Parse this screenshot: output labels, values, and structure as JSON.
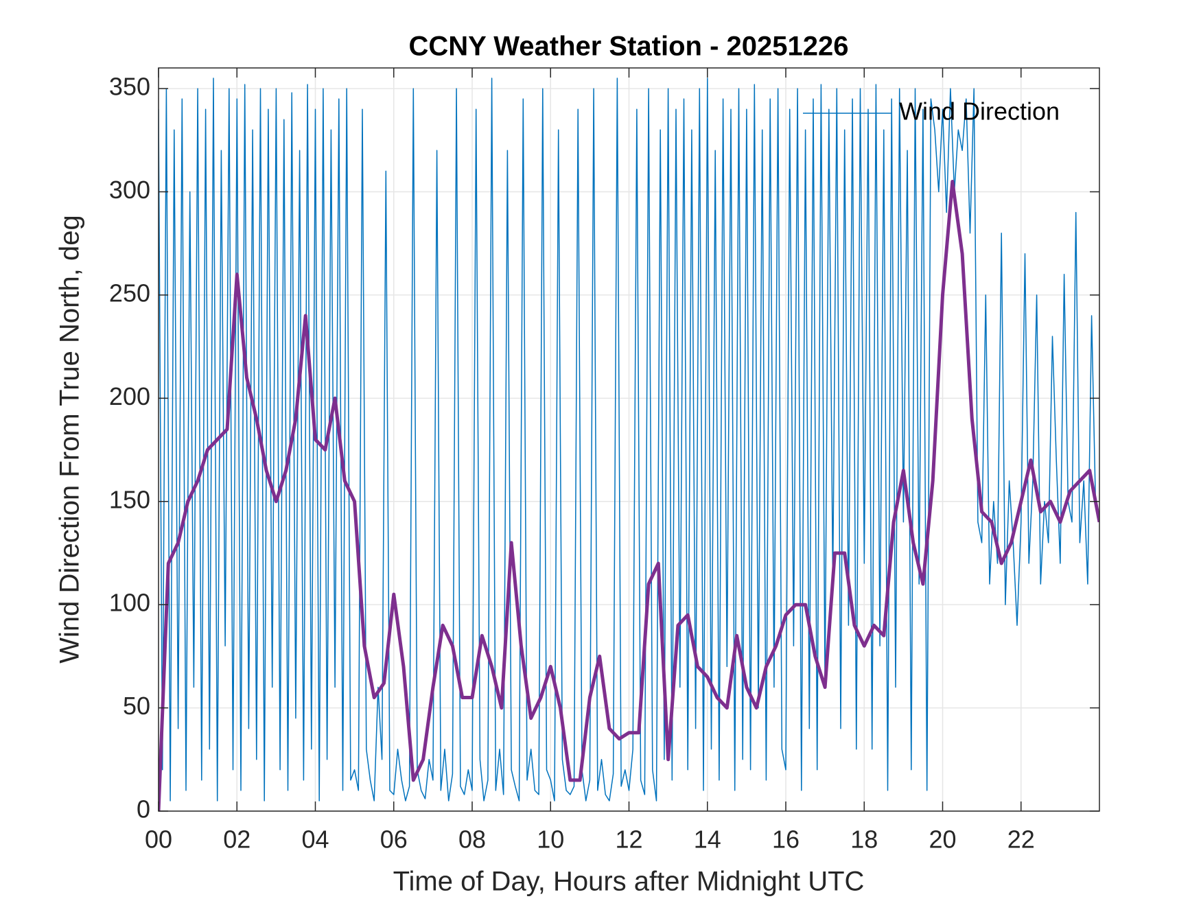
{
  "chart_data": {
    "type": "line",
    "title": "CCNY Weather Station - 20251226",
    "xlabel": "Time of Day, Hours after Midnight UTC",
    "ylabel": "Wind Direction From True North, deg",
    "xlim": [
      0,
      24
    ],
    "xticks": [
      {
        "value": 0,
        "label": "00"
      },
      {
        "value": 2,
        "label": "02"
      },
      {
        "value": 4,
        "label": "04"
      },
      {
        "value": 6,
        "label": "06"
      },
      {
        "value": 8,
        "label": "08"
      },
      {
        "value": 10,
        "label": "10"
      },
      {
        "value": 12,
        "label": "12"
      },
      {
        "value": 14,
        "label": "14"
      },
      {
        "value": 16,
        "label": "16"
      },
      {
        "value": 18,
        "label": "18"
      },
      {
        "value": 20,
        "label": "20"
      },
      {
        "value": 22,
        "label": "22"
      }
    ],
    "ylim": [
      0,
      360
    ],
    "yticks": [
      0,
      50,
      100,
      150,
      200,
      250,
      300,
      350
    ],
    "grid": true,
    "legend": "northeast",
    "series": [
      {
        "name": "Wind Direction",
        "color": "#0072bd",
        "width": 1.5,
        "x": [
          0,
          0.1,
          0.2,
          0.3,
          0.4,
          0.5,
          0.6,
          0.7,
          0.8,
          0.9,
          1,
          1.1,
          1.2,
          1.3,
          1.4,
          1.5,
          1.6,
          1.7,
          1.8,
          1.9,
          2,
          2.1,
          2.2,
          2.3,
          2.4,
          2.5,
          2.6,
          2.7,
          2.8,
          2.9,
          3,
          3.1,
          3.2,
          3.3,
          3.4,
          3.5,
          3.6,
          3.7,
          3.8,
          3.9,
          4,
          4.1,
          4.2,
          4.3,
          4.4,
          4.5,
          4.6,
          4.7,
          4.8,
          4.9,
          5,
          5.1,
          5.2,
          5.3,
          5.4,
          5.5,
          5.6,
          5.7,
          5.8,
          5.9,
          6,
          6.1,
          6.2,
          6.3,
          6.4,
          6.5,
          6.6,
          6.7,
          6.8,
          6.9,
          7,
          7.1,
          7.2,
          7.3,
          7.4,
          7.5,
          7.6,
          7.7,
          7.8,
          7.9,
          8,
          8.1,
          8.2,
          8.3,
          8.4,
          8.5,
          8.6,
          8.7,
          8.8,
          8.9,
          9,
          9.1,
          9.2,
          9.3,
          9.4,
          9.5,
          9.6,
          9.7,
          9.8,
          9.9,
          10,
          10.1,
          10.2,
          10.3,
          10.4,
          10.5,
          10.6,
          10.7,
          10.8,
          10.9,
          11,
          11.1,
          11.2,
          11.3,
          11.4,
          11.5,
          11.6,
          11.7,
          11.8,
          11.9,
          12,
          12.1,
          12.2,
          12.3,
          12.4,
          12.5,
          12.6,
          12.7,
          12.8,
          12.9,
          13,
          13.1,
          13.2,
          13.3,
          13.4,
          13.5,
          13.6,
          13.7,
          13.8,
          13.9,
          14,
          14.1,
          14.2,
          14.3,
          14.4,
          14.5,
          14.6,
          14.7,
          14.8,
          14.9,
          15,
          15.1,
          15.2,
          15.3,
          15.4,
          15.5,
          15.6,
          15.7,
          15.8,
          15.9,
          16,
          16.1,
          16.2,
          16.3,
          16.4,
          16.5,
          16.6,
          16.7,
          16.8,
          16.9,
          17,
          17.1,
          17.2,
          17.3,
          17.4,
          17.5,
          17.6,
          17.7,
          17.8,
          17.9,
          18,
          18.1,
          18.2,
          18.3,
          18.4,
          18.5,
          18.6,
          18.7,
          18.8,
          18.9,
          19,
          19.1,
          19.2,
          19.3,
          19.4,
          19.5,
          19.6,
          19.7,
          19.8,
          19.9,
          20,
          20.1,
          20.2,
          20.3,
          20.4,
          20.5,
          20.6,
          20.7,
          20.8,
          20.9,
          21,
          21.1,
          21.2,
          21.3,
          21.4,
          21.5,
          21.6,
          21.7,
          21.8,
          21.9,
          22,
          22.1,
          22.2,
          22.3,
          22.4,
          22.5,
          22.6,
          22.7,
          22.8,
          22.9,
          23,
          23.1,
          23.2,
          23.3,
          23.4,
          23.5,
          23.6,
          23.7,
          23.8,
          23.9,
          24
        ],
        "values": [
          340,
          20,
          350,
          5,
          330,
          40,
          345,
          10,
          300,
          60,
          350,
          15,
          340,
          30,
          355,
          5,
          320,
          80,
          350,
          20,
          345,
          10,
          352,
          40,
          330,
          25,
          350,
          5,
          340,
          60,
          350,
          20,
          335,
          10,
          348,
          45,
          320,
          15,
          352,
          30,
          340,
          5,
          350,
          25,
          330,
          60,
          345,
          10,
          350,
          15,
          20,
          10,
          340,
          30,
          15,
          5,
          60,
          25,
          310,
          10,
          8,
          30,
          15,
          5,
          12,
          350,
          20,
          10,
          6,
          25,
          15,
          320,
          10,
          30,
          5,
          18,
          350,
          12,
          8,
          20,
          10,
          340,
          25,
          5,
          15,
          355,
          10,
          30,
          8,
          320,
          20,
          12,
          5,
          345,
          15,
          30,
          10,
          8,
          350,
          20,
          15,
          5,
          330,
          25,
          10,
          8,
          12,
          340,
          20,
          5,
          15,
          350,
          10,
          25,
          8,
          5,
          18,
          355,
          12,
          20,
          10,
          30,
          340,
          15,
          8,
          350,
          20,
          5,
          330,
          25,
          350,
          15,
          340,
          60,
          345,
          20,
          330,
          40,
          350,
          10,
          355,
          30,
          320,
          15,
          345,
          70,
          340,
          10,
          350,
          25,
          340,
          20,
          352,
          50,
          330,
          15,
          345,
          60,
          350,
          30,
          20,
          340,
          80,
          350,
          10,
          330,
          40,
          345,
          20,
          352,
          60,
          340,
          110,
          350,
          40,
          330,
          90,
          345,
          30,
          350,
          120,
          340,
          30,
          352,
          80,
          330,
          10,
          345,
          60,
          350,
          140,
          320,
          20,
          350,
          110,
          340,
          10,
          345,
          330,
          300,
          340,
          290,
          350,
          300,
          330,
          320,
          345,
          280,
          350,
          140,
          130,
          250,
          110,
          150,
          120,
          280,
          100,
          160,
          130,
          90,
          140,
          270,
          120,
          160,
          250,
          110,
          150,
          130,
          230,
          170,
          120,
          260,
          150,
          140,
          290,
          130,
          160,
          110,
          240,
          150,
          140
        ]
      },
      {
        "color": "#7e2f8e",
        "width": 5,
        "x": [
          0,
          0.25,
          0.5,
          0.75,
          1,
          1.25,
          1.5,
          1.75,
          2,
          2.25,
          2.5,
          2.75,
          3,
          3.25,
          3.5,
          3.75,
          4,
          4.25,
          4.5,
          4.75,
          5,
          5.25,
          5.5,
          5.75,
          6,
          6.25,
          6.5,
          6.75,
          7,
          7.25,
          7.5,
          7.75,
          8,
          8.25,
          8.5,
          8.75,
          9,
          9.25,
          9.5,
          9.75,
          10,
          10.25,
          10.5,
          10.75,
          11,
          11.25,
          11.5,
          11.75,
          12,
          12.25,
          12.5,
          12.75,
          13,
          13.25,
          13.5,
          13.75,
          14,
          14.25,
          14.5,
          14.75,
          15,
          15.25,
          15.5,
          15.75,
          16,
          16.25,
          16.5,
          16.75,
          17,
          17.25,
          17.5,
          17.75,
          18,
          18.25,
          18.5,
          18.75,
          19,
          19.25,
          19.5,
          19.75,
          20,
          20.25,
          20.5,
          20.75,
          21,
          21.25,
          21.5,
          21.75,
          22,
          22.25,
          22.5,
          22.75,
          23,
          23.25,
          23.5,
          23.75,
          24
        ],
        "values": [
          0,
          120,
          130,
          150,
          160,
          175,
          180,
          185,
          260,
          210,
          190,
          165,
          150,
          165,
          190,
          240,
          180,
          175,
          200,
          160,
          150,
          80,
          55,
          62,
          105,
          70,
          15,
          25,
          60,
          90,
          80,
          55,
          55,
          85,
          70,
          50,
          130,
          80,
          45,
          55,
          70,
          50,
          15,
          15,
          55,
          75,
          40,
          35,
          38,
          38,
          110,
          120,
          25,
          90,
          95,
          70,
          65,
          55,
          50,
          85,
          60,
          50,
          70,
          80,
          95,
          100,
          100,
          75,
          60,
          125,
          125,
          90,
          80,
          90,
          85,
          140,
          165,
          130,
          110,
          160,
          250,
          305,
          270,
          190,
          145,
          140,
          120,
          130,
          150,
          170,
          145,
          150,
          140,
          155,
          160,
          165,
          140
        ]
      }
    ]
  }
}
